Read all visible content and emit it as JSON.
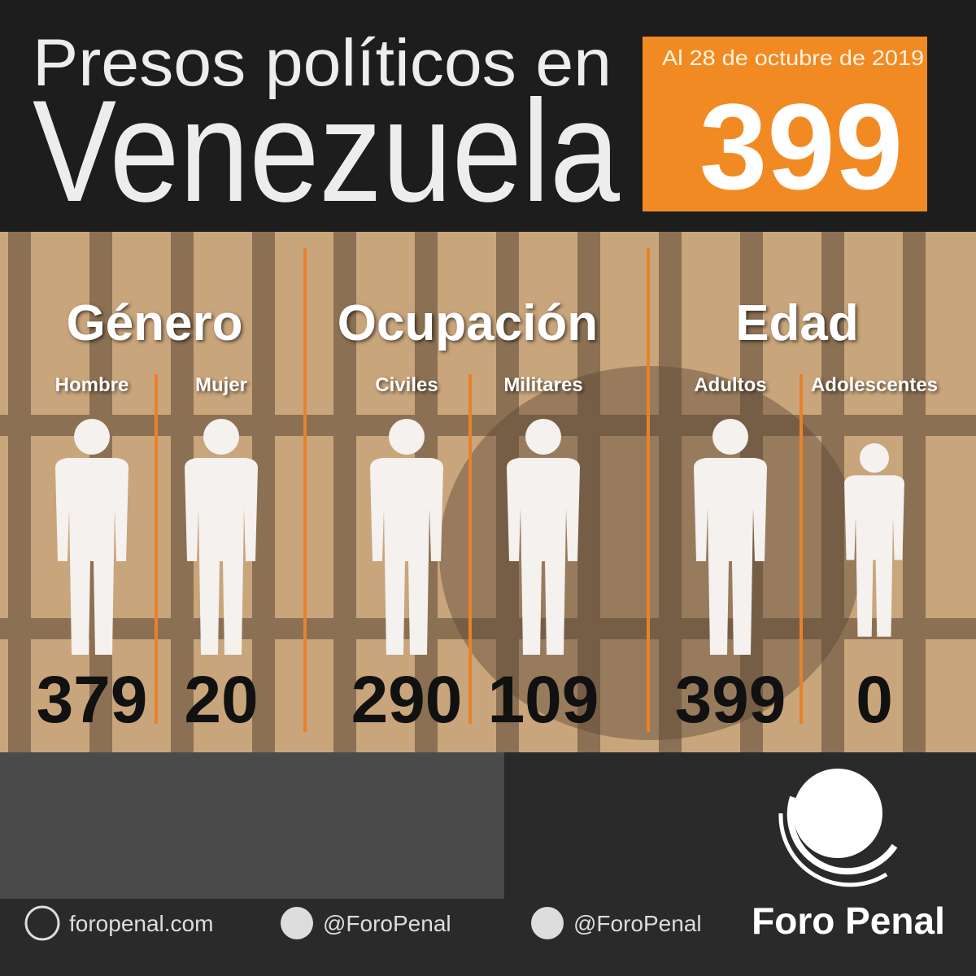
{
  "header": {
    "title_line1": "Presos políticos en",
    "title_line2": "Venezuela"
  },
  "total_box": {
    "date": "Al 28 de octubre de 2019",
    "total": 399
  },
  "groups": [
    {
      "title": "Género",
      "items": [
        {
          "label": "Hombre",
          "value": 379
        },
        {
          "label": "Mujer",
          "value": 20
        }
      ]
    },
    {
      "title": "Ocupación",
      "items": [
        {
          "label": "Civiles",
          "value": 290
        },
        {
          "label": "Militares",
          "value": 109
        }
      ]
    },
    {
      "title": "Edad",
      "items": [
        {
          "label": "Adultos",
          "value": 399
        },
        {
          "label": "Adolescentes",
          "value": 0
        }
      ]
    }
  ],
  "footer": {
    "website": "foropenal.com",
    "twitter": "@ForoPenal",
    "instagram": "@ForoPenal",
    "brand": "Foro Penal"
  }
}
